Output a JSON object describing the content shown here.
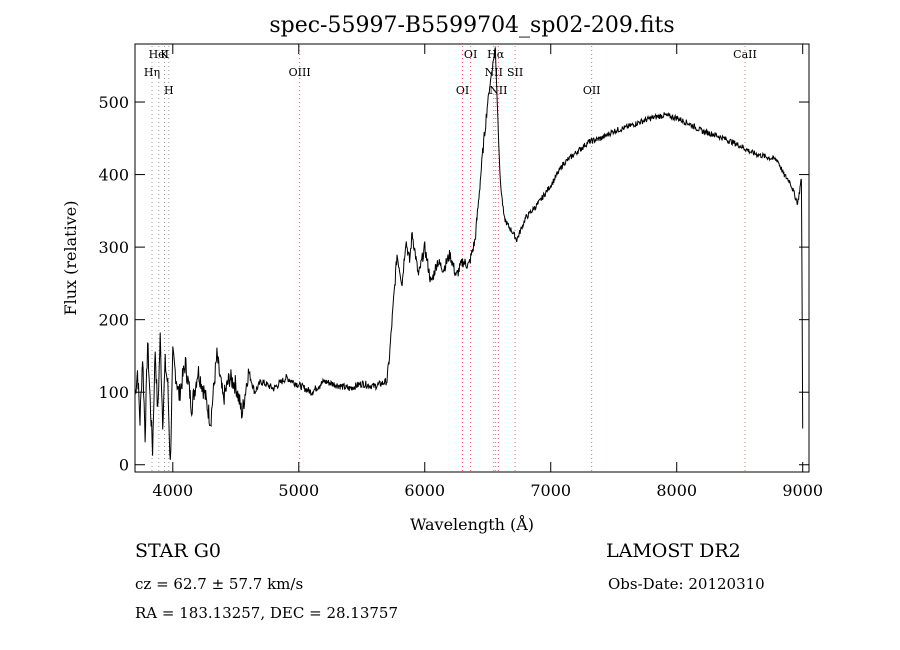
{
  "chart_data": {
    "type": "line",
    "title": "spec-55997-B5599704_sp02-209.fits",
    "xlabel": "Wavelength (Å)",
    "ylabel": "Flux (relative)",
    "xlim": [
      3700,
      9050
    ],
    "ylim": [
      -10,
      580
    ],
    "xticks": [
      4000,
      5000,
      6000,
      7000,
      8000,
      9000
    ],
    "yticks": [
      0,
      100,
      200,
      300,
      400,
      500
    ],
    "series": [
      {
        "points": [
          [
            3700,
            95
          ],
          [
            3720,
            130
          ],
          [
            3740,
            60
          ],
          [
            3760,
            150
          ],
          [
            3780,
            40
          ],
          [
            3800,
            170
          ],
          [
            3820,
            90
          ],
          [
            3840,
            20
          ],
          [
            3860,
            160
          ],
          [
            3880,
            70
          ],
          [
            3900,
            175
          ],
          [
            3920,
            60
          ],
          [
            3940,
            140
          ],
          [
            3960,
            110
          ],
          [
            3980,
            0
          ],
          [
            4000,
            150
          ],
          [
            4050,
            95
          ],
          [
            4100,
            140
          ],
          [
            4150,
            80
          ],
          [
            4200,
            130
          ],
          [
            4250,
            100
          ],
          [
            4300,
            60
          ],
          [
            4350,
            150
          ],
          [
            4400,
            90
          ],
          [
            4450,
            120
          ],
          [
            4500,
            110
          ],
          [
            4550,
            70
          ],
          [
            4600,
            130
          ],
          [
            4650,
            100
          ],
          [
            4700,
            115
          ],
          [
            4800,
            105
          ],
          [
            4900,
            120
          ],
          [
            5000,
            110
          ],
          [
            5100,
            100
          ],
          [
            5200,
            115
          ],
          [
            5300,
            110
          ],
          [
            5400,
            105
          ],
          [
            5500,
            112
          ],
          [
            5600,
            108
          ],
          [
            5700,
            115
          ],
          [
            5720,
            150
          ],
          [
            5750,
            220
          ],
          [
            5780,
            290
          ],
          [
            5820,
            250
          ],
          [
            5850,
            310
          ],
          [
            5880,
            280
          ],
          [
            5900,
            320
          ],
          [
            5950,
            260
          ],
          [
            6000,
            300
          ],
          [
            6050,
            250
          ],
          [
            6100,
            280
          ],
          [
            6150,
            270
          ],
          [
            6200,
            290
          ],
          [
            6250,
            260
          ],
          [
            6300,
            280
          ],
          [
            6350,
            275
          ],
          [
            6400,
            310
          ],
          [
            6430,
            370
          ],
          [
            6460,
            430
          ],
          [
            6500,
            500
          ],
          [
            6530,
            540
          ],
          [
            6560,
            575
          ],
          [
            6580,
            480
          ],
          [
            6600,
            390
          ],
          [
            6630,
            340
          ],
          [
            6660,
            330
          ],
          [
            6700,
            320
          ],
          [
            6730,
            310
          ],
          [
            6800,
            340
          ],
          [
            6900,
            360
          ],
          [
            7000,
            385
          ],
          [
            7100,
            415
          ],
          [
            7200,
            430
          ],
          [
            7300,
            445
          ],
          [
            7400,
            450
          ],
          [
            7500,
            460
          ],
          [
            7600,
            465
          ],
          [
            7700,
            472
          ],
          [
            7800,
            478
          ],
          [
            7900,
            482
          ],
          [
            8000,
            478
          ],
          [
            8100,
            470
          ],
          [
            8200,
            460
          ],
          [
            8300,
            455
          ],
          [
            8400,
            448
          ],
          [
            8500,
            440
          ],
          [
            8600,
            430
          ],
          [
            8700,
            425
          ],
          [
            8800,
            420
          ],
          [
            8850,
            400
          ],
          [
            8900,
            390
          ],
          [
            8960,
            360
          ],
          [
            8990,
            395
          ],
          [
            9000,
            50
          ]
        ]
      }
    ],
    "lines": [
      {
        "label": "HeI",
        "x": 3889,
        "color": "#9a9a9a"
      },
      {
        "label": "Hη",
        "x": 3835,
        "color": "#9a9a9a"
      },
      {
        "label": "H",
        "x": 3968,
        "color": "#9a9a9a"
      },
      {
        "label": "K",
        "x": 3934,
        "color": "#9a9a9a"
      },
      {
        "label": "OIII",
        "x": 5007,
        "color": "#ff6060"
      },
      {
        "label": "OI",
        "x": 6300,
        "color": "#ff6060"
      },
      {
        "label": "OI",
        "x": 6364,
        "color": "#ff6060"
      },
      {
        "label": "NII",
        "x": 6548,
        "color": "#ff6060"
      },
      {
        "label": "NII",
        "x": 6584,
        "color": "#ff6060"
      },
      {
        "label": "Hα",
        "x": 6563,
        "color": "#9a9a9a"
      },
      {
        "label": "SII",
        "x": 6717,
        "color": "#ff6060"
      },
      {
        "label": "OII",
        "x": 7325,
        "color": "#ff6060"
      },
      {
        "label": "CaII",
        "x": 8542,
        "color": "#ff6060"
      }
    ]
  },
  "info": {
    "object_class": "STAR   G0",
    "survey": "LAMOST DR2",
    "cz": "cz = 62.7 ± 57.7 km/s",
    "obs_date": "Obs-Date: 20120310",
    "radec": "RA = 183.13257, DEC =  28.13757"
  }
}
